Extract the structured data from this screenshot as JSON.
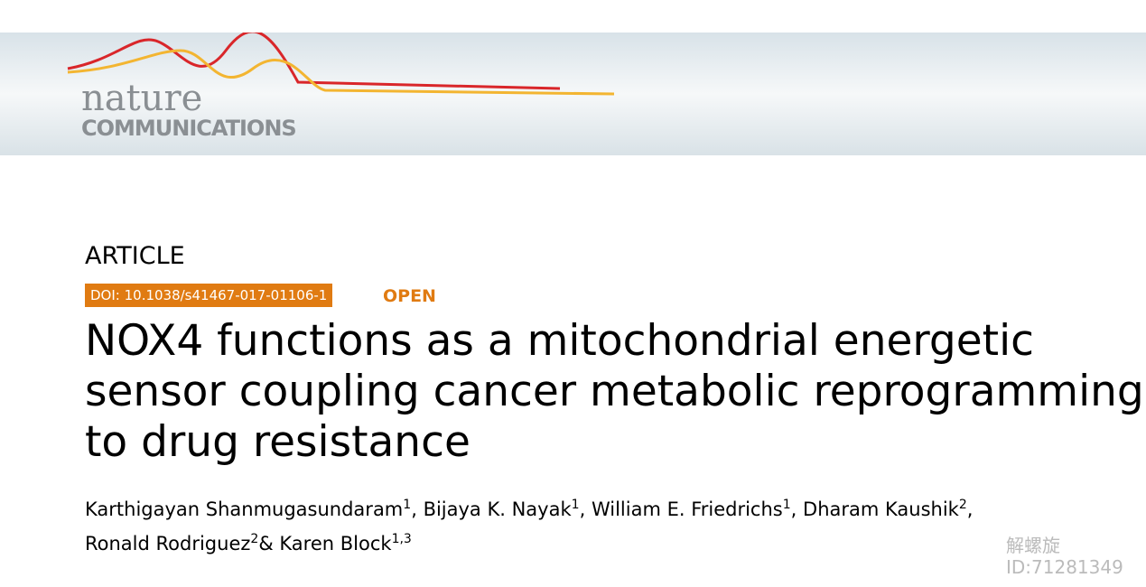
{
  "header": {
    "logo_top": "nature",
    "logo_bottom": "COMMUNICATIONS"
  },
  "article": {
    "label": "ARTICLE",
    "doi": "DOI: 10.1038/s41467-017-01106-1",
    "access": "OPEN",
    "title": "NOX4 functions as a mitochondrial energetic sensor coupling cancer metabolic reprogramming to drug resistance",
    "authors": [
      {
        "name": "Karthigayan Shanmugasundaram",
        "aff": "1"
      },
      {
        "name": "Bijaya K. Nayak",
        "aff": "1"
      },
      {
        "name": "William E. Friedrichs",
        "aff": "1"
      },
      {
        "name": "Dharam Kaushik",
        "aff": "2"
      },
      {
        "name": "Ronald Rodriguez",
        "aff": "2"
      },
      {
        "name": "Karen Block",
        "aff": "1,3"
      }
    ],
    "separators": [
      ",",
      ",",
      ",",
      ",",
      "&"
    ]
  },
  "watermark": {
    "name": "解螺旋",
    "id": "ID:71281349"
  }
}
